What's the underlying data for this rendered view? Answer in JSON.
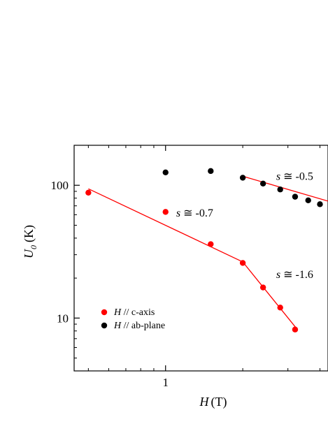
{
  "chart_data": {
    "type": "scatter",
    "x_scale": "log",
    "y_scale": "log",
    "xlim": [
      0.44,
      4.3
    ],
    "ylim": [
      4,
      200
    ],
    "xlabel_var": "H",
    "xlabel_unit": "(T)",
    "ylabel_var": "U",
    "ylabel_sub": "0",
    "ylabel_unit": "(K)",
    "x_tick_labels": [
      {
        "value": 1,
        "label": "1"
      }
    ],
    "x_ticks_major": [
      1
    ],
    "x_ticks_minor": [
      0.5,
      0.6,
      0.7,
      0.8,
      0.9,
      2,
      3,
      4
    ],
    "y_tick_labels": [
      {
        "value": 10,
        "label": "10"
      },
      {
        "value": 100,
        "label": "100"
      }
    ],
    "y_ticks_major": [
      10,
      100
    ],
    "y_ticks_minor": [
      5,
      6,
      7,
      8,
      9,
      20,
      30,
      40,
      50,
      60,
      70,
      80,
      90,
      200
    ],
    "series": [
      {
        "name": "c-axis",
        "legend_prefix": "H",
        "legend_sep": " // ",
        "color": "#ff0000",
        "x": [
          0.5,
          1.0,
          1.5,
          2.0,
          2.4,
          2.8,
          3.2
        ],
        "y": [
          88,
          63,
          36,
          26,
          17,
          12,
          8.2
        ]
      },
      {
        "name": "ab-plane",
        "legend_prefix": "H",
        "legend_sep": " // ",
        "color": "#000000",
        "x": [
          1.0,
          1.5,
          2.0,
          2.4,
          2.8,
          3.2,
          3.6,
          4.0
        ],
        "y": [
          125,
          128,
          114,
          103,
          93,
          82,
          77,
          72
        ]
      }
    ],
    "fit_lines": [
      {
        "color": "#ff0000",
        "points": [
          [
            0.5,
            94
          ],
          [
            2.0,
            26.5
          ]
        ]
      },
      {
        "color": "#ff0000",
        "points": [
          [
            2.0,
            26.5
          ],
          [
            3.25,
            8.3
          ]
        ]
      },
      {
        "color": "#ff0000",
        "points": [
          [
            2.0,
            117
          ],
          [
            4.3,
            76
          ]
        ]
      }
    ],
    "annotations": [
      {
        "var": "s",
        "rest": " ≅ -0.7",
        "x": 1.1,
        "y": 58
      },
      {
        "var": "s",
        "rest": " ≅ -1.6",
        "x": 2.7,
        "y": 20
      },
      {
        "var": "s",
        "rest": " ≅ -0.5",
        "x": 2.7,
        "y": 110
      }
    ],
    "legend_position": "bottom-left"
  }
}
